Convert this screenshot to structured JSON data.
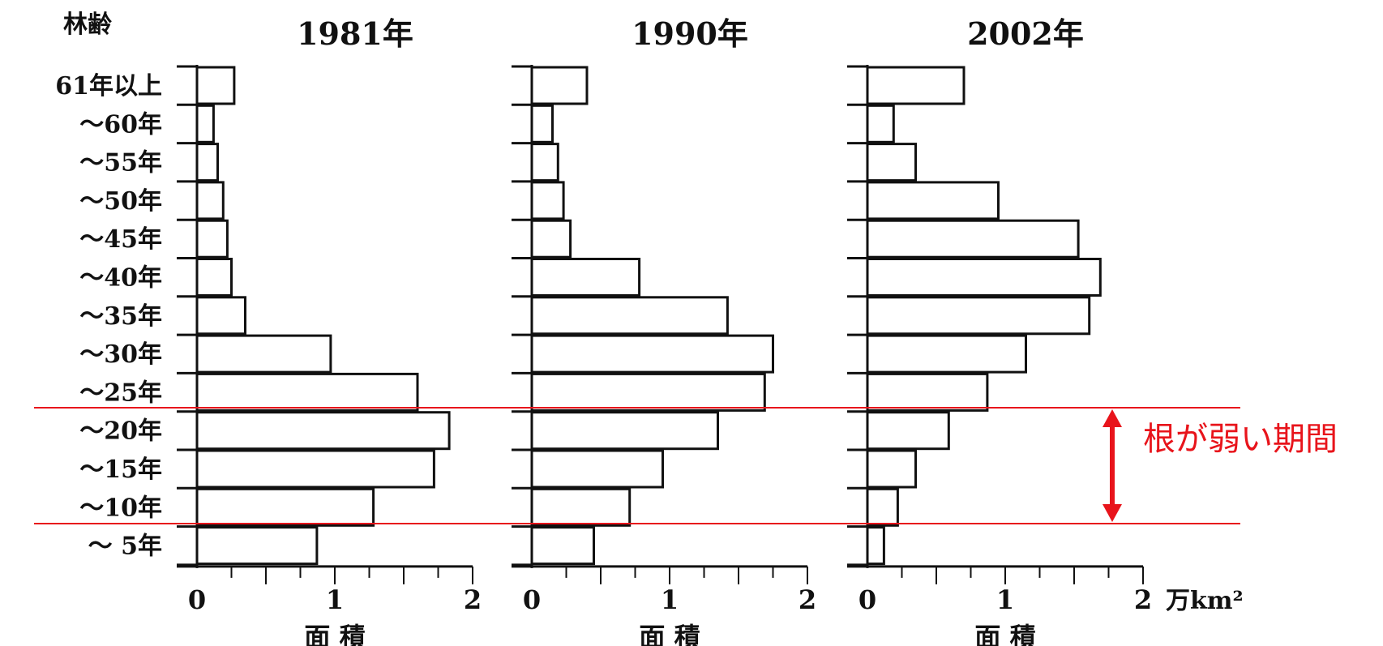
{
  "chart_data": {
    "type": "bar",
    "orientation": "horizontal",
    "y_title": "林齢",
    "categories": [
      "61年以上",
      "～60年",
      "～55年",
      "～50年",
      "～45年",
      "～40年",
      "～35年",
      "～30年",
      "～25年",
      "～20年",
      "～15年",
      "～10年",
      "～ 5年"
    ],
    "xlim": [
      0,
      2
    ],
    "x_ticks": [
      "0",
      "1",
      "2"
    ],
    "unit": "万km²",
    "panels": [
      {
        "title": "1981年",
        "xlabel": "面 積",
        "values": [
          0.27,
          0.12,
          0.15,
          0.19,
          0.22,
          0.25,
          0.35,
          0.97,
          1.6,
          1.83,
          1.72,
          1.28,
          0.87
        ]
      },
      {
        "title": "1990年",
        "xlabel": "面 積",
        "values": [
          0.4,
          0.15,
          0.19,
          0.23,
          0.28,
          0.78,
          1.42,
          1.75,
          1.69,
          1.35,
          0.95,
          0.71,
          0.45
        ]
      },
      {
        "title": "2002年",
        "xlabel": "面 積",
        "values": [
          0.7,
          0.19,
          0.35,
          0.95,
          1.53,
          1.69,
          1.61,
          1.15,
          0.87,
          0.59,
          0.35,
          0.22,
          0.12
        ]
      }
    ],
    "annotation": {
      "label": "根が弱い期間",
      "color": "#e8141b",
      "from_category": "～20年",
      "to_category": "～10年"
    }
  }
}
